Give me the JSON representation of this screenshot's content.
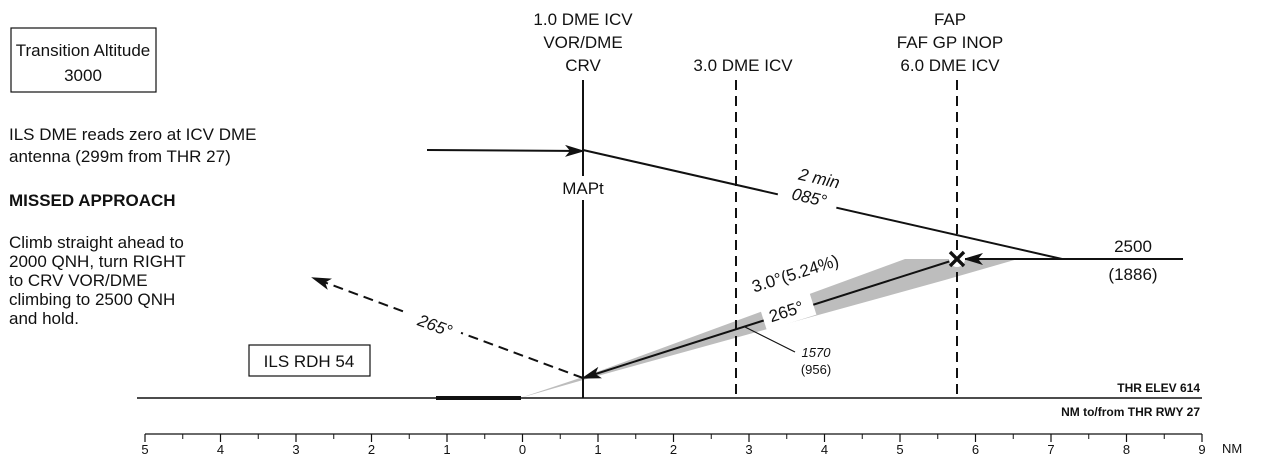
{
  "transition_box": {
    "title": "Transition Altitude",
    "value": "3000"
  },
  "dme_note": {
    "line1": "ILS DME reads zero at ICV DME",
    "line2": "antenna (299m from THR 27)"
  },
  "missed_approach": {
    "heading": "MISSED APPROACH",
    "lines": [
      "Climb straight ahead to",
      "2000 QNH, turn RIGHT",
      "to CRV VOR/DME",
      "climbing to 2500 QNH",
      "and hold."
    ]
  },
  "rdh_box": {
    "label": "ILS RDH 54"
  },
  "fixes": {
    "mapt": {
      "lines": [
        "1.0 DME ICV",
        "VOR/DME",
        "CRV"
      ],
      "label": "MAPt"
    },
    "dme3": {
      "label": "3.0 DME ICV"
    },
    "fap": {
      "lines": [
        "FAP",
        "FAF GP INOP",
        "6.0 DME ICV"
      ]
    }
  },
  "outbound_leg": {
    "time": "2 min",
    "track": "085°"
  },
  "glide_path": {
    "angle": "3.0°(5.24%)",
    "track": "265°"
  },
  "missed_track": {
    "track": "265°"
  },
  "altitude": {
    "main": "2500",
    "sub": "(1886)"
  },
  "spot_altitude": {
    "main": "1570",
    "sub": "(956)"
  },
  "threshold": {
    "elev": "THR ELEV 614",
    "dist_label": "NM to/from THR RWY 27"
  },
  "scale": {
    "ticks": [
      "5",
      "4",
      "3",
      "2",
      "1",
      "0",
      "1",
      "2",
      "3",
      "4",
      "5",
      "6",
      "7",
      "8",
      "9"
    ],
    "unit": "NM"
  }
}
